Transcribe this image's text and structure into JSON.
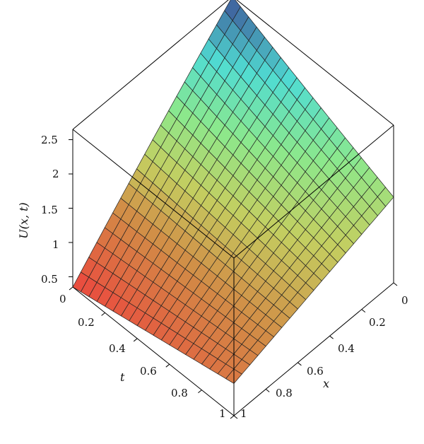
{
  "chart_data": {
    "type": "surface3d",
    "title": "",
    "function_label": "U(x, t)",
    "xlabel": "x",
    "tlabel": "t",
    "zlabel": "U(x, t)",
    "xlim": [
      0,
      1
    ],
    "tlim": [
      0,
      1
    ],
    "zlim": [
      0.35,
      2.65
    ],
    "x_ticks": [
      "0",
      "0.2",
      "0.4",
      "0.6",
      "0.8",
      "1"
    ],
    "t_ticks": [
      "0",
      "0.2",
      "0.4",
      "0.6",
      "0.8",
      "1"
    ],
    "z_ticks": [
      "0.5",
      "1",
      "1.5",
      "2",
      "2.5"
    ],
    "grid_lines": 21,
    "corner_values": {
      "x0_t0": 0.35,
      "x0_t1": 0.82,
      "x1_t0": 2.65,
      "x1_t1": 1.6
    },
    "colormap": "rainbow (red low, green/yellow mid, cyan/blue high)"
  }
}
